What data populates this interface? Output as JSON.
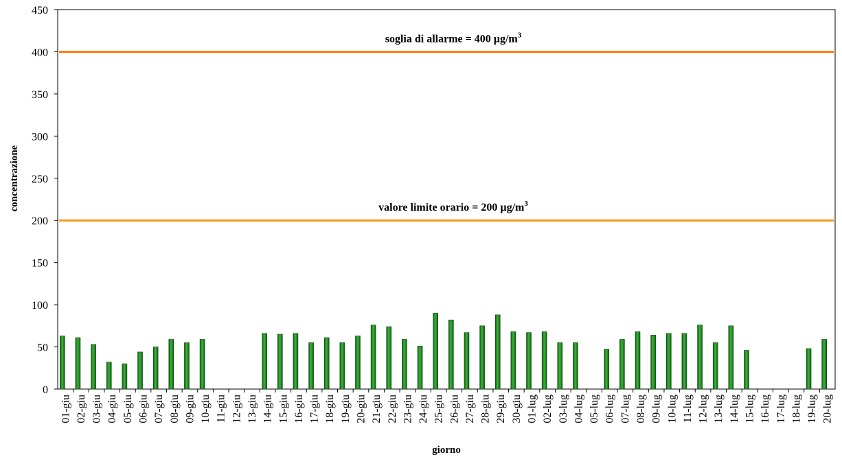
{
  "chart_data": {
    "type": "bar",
    "x_label": "giorno",
    "y_label": "concentrazione",
    "categories": [
      "01-giu",
      "02-giu",
      "03-giu",
      "04-giu",
      "05-giu",
      "06-giu",
      "07-giu",
      "08-giu",
      "09-giu",
      "10-giu",
      "11-giu",
      "12-giu",
      "13-giu",
      "14-giu",
      "15-giu",
      "16-giu",
      "17-giu",
      "18-giu",
      "19-giu",
      "20-giu",
      "21-giu",
      "22-giu",
      "23-giu",
      "24-giu",
      "25-giu",
      "26-giu",
      "27-giu",
      "28-giu",
      "29-giu",
      "30-giu",
      "01-lug",
      "02-lug",
      "03-lug",
      "04-lug",
      "05-lug",
      "06-lug",
      "07-lug",
      "08-lug",
      "09-lug",
      "10-lug",
      "11-lug",
      "12-lug",
      "13-lug",
      "14-lug",
      "15-lug",
      "16-lug",
      "17-lug",
      "18-lug",
      "19-lug",
      "20-lug"
    ],
    "values": [
      63,
      61,
      53,
      32,
      30,
      44,
      50,
      59,
      55,
      59,
      null,
      null,
      null,
      66,
      65,
      66,
      55,
      61,
      55,
      63,
      76,
      74,
      59,
      51,
      90,
      82,
      67,
      75,
      88,
      68,
      67,
      68,
      55,
      55,
      null,
      47,
      59,
      68,
      64,
      66,
      66,
      76,
      55,
      75,
      46,
      null,
      null,
      null,
      48,
      59
    ],
    "color": "#1f8a1f",
    "ylim": [
      0,
      450
    ],
    "yticks": [
      0,
      50,
      100,
      150,
      200,
      250,
      300,
      350,
      400,
      450
    ],
    "reference_lines": [
      {
        "value": 400,
        "label": "soglia di allarme = 400 µg/m",
        "label_sup": "3",
        "color": "#ff7f0e"
      },
      {
        "value": 200,
        "label": "valore limite orario = 200 µg/m",
        "label_sup": "3",
        "color": "#f59a1a"
      }
    ]
  }
}
